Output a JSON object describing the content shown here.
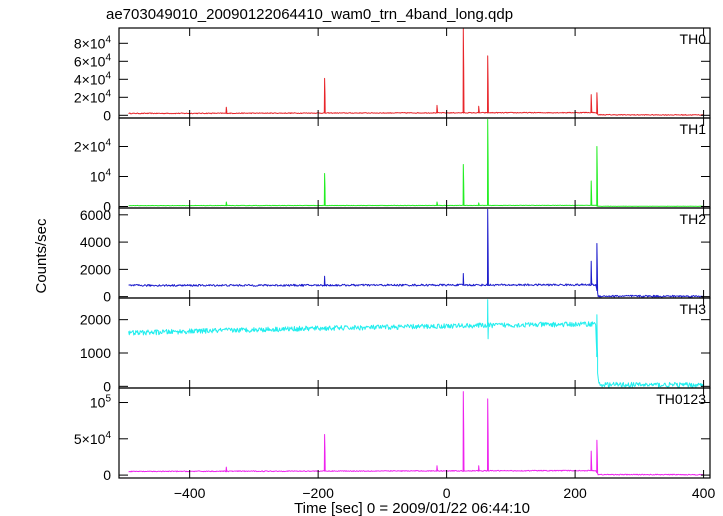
{
  "chart_data": {
    "type": "line",
    "title": "ae703049010_20090122064410_wam0_trn_4band_long.qdp",
    "xlabel": "Time [sec] 0 = 2009/01/22 06:44:10",
    "ylabel": "Counts/sec",
    "xlim": [
      -510,
      410
    ],
    "x_ticks": [
      -400,
      -200,
      0,
      200,
      400
    ],
    "x_tick_labels": [
      "−400",
      "−200",
      "0",
      "200",
      "400"
    ],
    "grid": false,
    "panels": [
      {
        "name": "TH0",
        "color": "#e8252a",
        "ylim": [
          -3000,
          97000
        ],
        "y_ticks": [
          0,
          20000,
          40000,
          60000,
          80000
        ],
        "y_tick_labels": [
          {
            "mant": "0",
            "exp": ""
          },
          {
            "mant": "2×10",
            "exp": "4"
          },
          {
            "mant": "4×10",
            "exp": "4"
          },
          {
            "mant": "6×10",
            "exp": "4"
          },
          {
            "mant": "8×10",
            "exp": "4"
          }
        ],
        "baseline": [
          [
            -495,
            2100
          ],
          [
            -400,
            2200
          ],
          [
            -300,
            2350
          ],
          [
            -200,
            2500
          ],
          [
            -100,
            2600
          ],
          [
            0,
            2750
          ],
          [
            100,
            2850
          ],
          [
            200,
            2950
          ],
          [
            232,
            3100
          ],
          [
            236,
            600
          ],
          [
            300,
            450
          ],
          [
            400,
            450
          ]
        ],
        "noise": 450,
        "spikes": [
          [
            -343,
            9000
          ],
          [
            -190,
            41000
          ],
          [
            -15,
            11000
          ],
          [
            26,
            96000
          ],
          [
            50,
            10000
          ],
          [
            64,
            66000
          ],
          [
            225,
            23000
          ],
          [
            234,
            25000
          ]
        ]
      },
      {
        "name": "TH1",
        "color": "#22ee22",
        "ylim": [
          -500,
          29500
        ],
        "y_ticks": [
          0,
          10000,
          20000
        ],
        "y_tick_labels": [
          {
            "mant": "0",
            "exp": ""
          },
          {
            "mant": "10",
            "exp": "4"
          },
          {
            "mant": "2×10",
            "exp": "4"
          }
        ],
        "baseline": [
          [
            -495,
            300
          ],
          [
            -300,
            320
          ],
          [
            0,
            350
          ],
          [
            232,
            380
          ],
          [
            236,
            80
          ],
          [
            400,
            70
          ]
        ],
        "noise": 50,
        "spikes": [
          [
            -343,
            1500
          ],
          [
            -190,
            11000
          ],
          [
            -15,
            1500
          ],
          [
            26,
            14000
          ],
          [
            50,
            1200
          ],
          [
            64,
            29000
          ],
          [
            225,
            8500
          ],
          [
            234,
            20000
          ]
        ]
      },
      {
        "name": "TH2",
        "color": "#1c1ccc",
        "ylim": [
          -100,
          6500
        ],
        "y_ticks": [
          0,
          2000,
          4000,
          6000
        ],
        "y_tick_labels": [
          {
            "mant": "0",
            "exp": ""
          },
          {
            "mant": "2000",
            "exp": ""
          },
          {
            "mant": "4000",
            "exp": ""
          },
          {
            "mant": "6000",
            "exp": ""
          }
        ],
        "baseline": [
          [
            -495,
            820
          ],
          [
            -300,
            830
          ],
          [
            0,
            850
          ],
          [
            232,
            870
          ],
          [
            236,
            40
          ],
          [
            400,
            30
          ]
        ],
        "noise": 70,
        "spikes": [
          [
            -190,
            1500
          ],
          [
            26,
            1700
          ],
          [
            64,
            6400
          ],
          [
            225,
            2600
          ],
          [
            234,
            3900
          ]
        ]
      },
      {
        "name": "TH3",
        "color": "#22eeee",
        "ylim": [
          -50,
          2650
        ],
        "y_ticks": [
          0,
          1000,
          2000
        ],
        "y_tick_labels": [
          {
            "mant": "0",
            "exp": ""
          },
          {
            "mant": "1000",
            "exp": ""
          },
          {
            "mant": "2000",
            "exp": ""
          }
        ],
        "baseline": [
          [
            -495,
            1600
          ],
          [
            -400,
            1650
          ],
          [
            -300,
            1700
          ],
          [
            -200,
            1740
          ],
          [
            -100,
            1770
          ],
          [
            0,
            1810
          ],
          [
            100,
            1840
          ],
          [
            200,
            1860
          ],
          [
            232,
            1880
          ],
          [
            235,
            400
          ],
          [
            237,
            50
          ],
          [
            400,
            40
          ]
        ],
        "noise": 75,
        "spikes": [
          [
            64,
            2600
          ],
          [
            234,
            2150
          ]
        ]
      },
      {
        "name": "TH0123",
        "color": "#ee22ee",
        "ylim": [
          -4000,
          120000
        ],
        "y_ticks": [
          0,
          50000,
          100000
        ],
        "y_tick_labels": [
          {
            "mant": "0",
            "exp": ""
          },
          {
            "mant": "5×10",
            "exp": "4"
          },
          {
            "mant": "10",
            "exp": "5"
          }
        ],
        "baseline": [
          [
            -495,
            5000
          ],
          [
            -300,
            5400
          ],
          [
            0,
            5800
          ],
          [
            232,
            6200
          ],
          [
            236,
            700
          ],
          [
            400,
            600
          ]
        ],
        "noise": 600,
        "spikes": [
          [
            -343,
            11000
          ],
          [
            -190,
            56000
          ],
          [
            -15,
            13000
          ],
          [
            26,
            115000
          ],
          [
            50,
            13000
          ],
          [
            64,
            105000
          ],
          [
            225,
            33000
          ],
          [
            234,
            48000
          ]
        ]
      }
    ]
  }
}
